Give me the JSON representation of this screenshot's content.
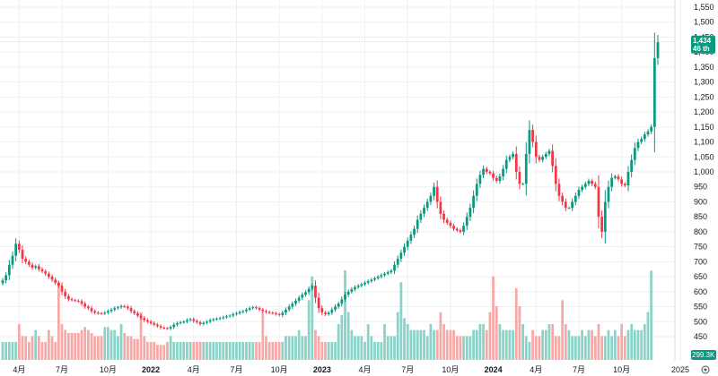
{
  "chart_data": {
    "type": "candlestick",
    "title": "",
    "y_axis": {
      "min": 400,
      "max": 1560,
      "ticks": [
        450,
        500,
        550,
        600,
        650,
        700,
        750,
        800,
        850,
        900,
        950,
        1000,
        1050,
        1100,
        1150,
        1200,
        1250,
        1300,
        1350,
        1400,
        1450,
        1500,
        1550
      ],
      "tick_labels": [
        "450",
        "500",
        "550",
        "600",
        "650",
        "700",
        "750",
        "800",
        "850",
        "900",
        "950",
        "1,000",
        "1,050",
        "1,100",
        "1,150",
        "1,200",
        "1,250",
        "1,300",
        "1,350",
        "1,400",
        "1,450",
        "1,500",
        "1,550"
      ]
    },
    "x_axis": {
      "ticks": [
        {
          "label": "4月",
          "bold": false,
          "index": 5
        },
        {
          "label": "7月",
          "bold": false,
          "index": 18
        },
        {
          "label": "10月",
          "bold": false,
          "index": 32
        },
        {
          "label": "2022",
          "bold": true,
          "index": 45
        },
        {
          "label": "4月",
          "bold": false,
          "index": 58
        },
        {
          "label": "7月",
          "bold": false,
          "index": 71
        },
        {
          "label": "10月",
          "bold": false,
          "index": 84
        },
        {
          "label": "2023",
          "bold": true,
          "index": 97
        },
        {
          "label": "4月",
          "bold": false,
          "index": 110
        },
        {
          "label": "7月",
          "bold": false,
          "index": 123
        },
        {
          "label": "10月",
          "bold": false,
          "index": 136
        },
        {
          "label": "2024",
          "bold": true,
          "index": 149
        },
        {
          "label": "4月",
          "bold": false,
          "index": 162
        },
        {
          "label": "7月",
          "bold": false,
          "index": 175
        },
        {
          "label": "10月",
          "bold": false,
          "index": 188
        },
        {
          "label": "2025",
          "bold": false,
          "index": 201
        }
      ]
    },
    "close": [
      638,
      655,
      690,
      720,
      760,
      740,
      710,
      700,
      690,
      680,
      685,
      675,
      668,
      660,
      650,
      640,
      630,
      620,
      600,
      585,
      575,
      572,
      570,
      568,
      560,
      550,
      545,
      535,
      530,
      528,
      527,
      530,
      535,
      540,
      545,
      548,
      552,
      550,
      545,
      535,
      528,
      520,
      512,
      505,
      500,
      495,
      490,
      485,
      480,
      478,
      477,
      482,
      490,
      495,
      498,
      500,
      505,
      508,
      502,
      498,
      492,
      496,
      500,
      505,
      508,
      510,
      512,
      515,
      518,
      520,
      525,
      528,
      532,
      535,
      540,
      545,
      548,
      545,
      540,
      535,
      532,
      530,
      528,
      525,
      522,
      530,
      540,
      550,
      560,
      570,
      580,
      590,
      598,
      610,
      620,
      580,
      545,
      530,
      525,
      530,
      540,
      550,
      560,
      575,
      590,
      600,
      608,
      615,
      620,
      625,
      630,
      635,
      640,
      645,
      650,
      655,
      660,
      665,
      670,
      690,
      710,
      730,
      750,
      770,
      790,
      810,
      840,
      860,
      880,
      900,
      920,
      950,
      900,
      860,
      840,
      830,
      820,
      810,
      805,
      800,
      820,
      850,
      880,
      920,
      960,
      990,
      1010,
      1000,
      995,
      980,
      970,
      985,
      1010,
      1040,
      1050,
      1060,
      1000,
      960,
      960,
      1060,
      1140,
      1100,
      1050,
      1040,
      1050,
      1060,
      1070,
      1020,
      960,
      920,
      900,
      880,
      880,
      900,
      920,
      940,
      950,
      960,
      970,
      960,
      950,
      850,
      800,
      900,
      950,
      980,
      985,
      975,
      960,
      955,
      1000,
      1040,
      1080,
      1100,
      1110,
      1125,
      1135,
      1150,
      1380,
      1434
    ],
    "volume_K": [
      60,
      60,
      60,
      60,
      60,
      120,
      80,
      80,
      60,
      80,
      100,
      80,
      60,
      60,
      100,
      80,
      60,
      260,
      120,
      100,
      90,
      90,
      90,
      90,
      100,
      110,
      100,
      90,
      80,
      80,
      80,
      110,
      110,
      100,
      100,
      80,
      120,
      90,
      80,
      80,
      70,
      70,
      160,
      80,
      60,
      60,
      60,
      50,
      50,
      50,
      60,
      80,
      60,
      60,
      60,
      60,
      60,
      60,
      60,
      60,
      60,
      60,
      60,
      60,
      60,
      60,
      60,
      60,
      60,
      60,
      60,
      60,
      60,
      60,
      60,
      60,
      60,
      60,
      60,
      160,
      80,
      60,
      60,
      60,
      60,
      60,
      80,
      80,
      80,
      80,
      100,
      80,
      80,
      200,
      280,
      100,
      80,
      60,
      60,
      60,
      60,
      60,
      120,
      150,
      300,
      160,
      100,
      80,
      80,
      80,
      60,
      120,
      80,
      60,
      60,
      60,
      120,
      80,
      80,
      80,
      160,
      260,
      140,
      120,
      100,
      100,
      100,
      100,
      100,
      80,
      120,
      100,
      100,
      160,
      120,
      100,
      100,
      100,
      80,
      80,
      80,
      80,
      80,
      100,
      100,
      120,
      120,
      100,
      160,
      280,
      180,
      120,
      100,
      100,
      100,
      100,
      240,
      180,
      120,
      80,
      60,
      100,
      80,
      80,
      100,
      100,
      120,
      120,
      80,
      80,
      200,
      120,
      100,
      80,
      80,
      80,
      100,
      80,
      100,
      100,
      80,
      120,
      80,
      80,
      100,
      80,
      100,
      80,
      120,
      80,
      100,
      120,
      100,
      100,
      100,
      120,
      160,
      299
    ],
    "volume_up_color": "#89d3c8",
    "volume_down_color": "#f7a9a7",
    "up_color": "#089981",
    "down_color": "#f23645",
    "last_price": {
      "value_label": "1,434",
      "countdown": "46 th",
      "color": "#089981"
    },
    "last_volume": {
      "value_label": "299.3K",
      "color": "#089981"
    },
    "settings_icon": "gear-icon"
  }
}
